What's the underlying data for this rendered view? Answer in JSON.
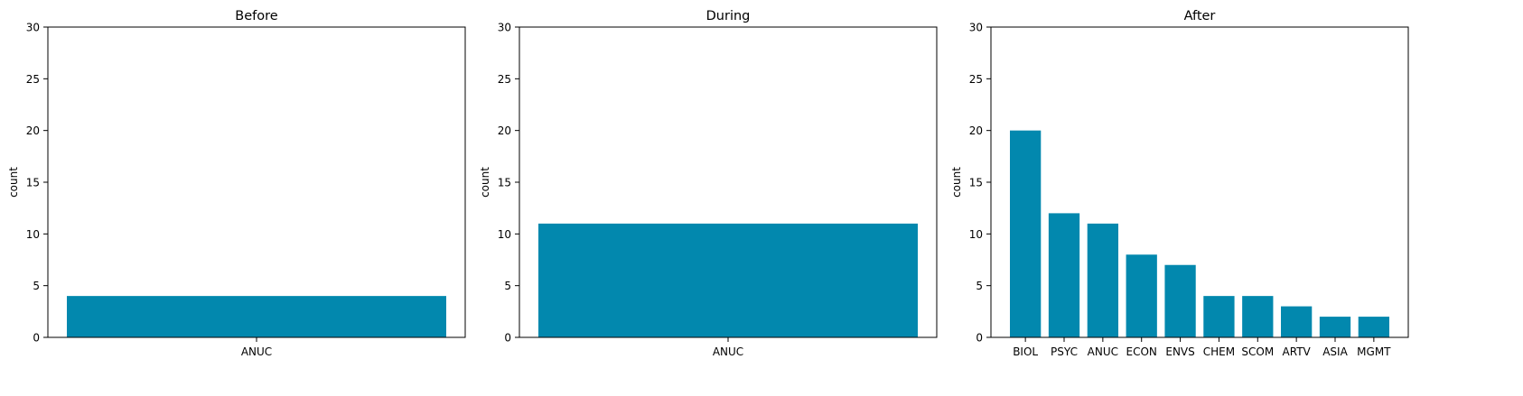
{
  "style": {
    "bar_color": "#0288ae",
    "axis_color": "#000000"
  },
  "chart_data": [
    {
      "type": "bar",
      "title": "Before",
      "ylabel": "count",
      "xlabel": "",
      "ylim": [
        0,
        30
      ],
      "yticks": [
        0,
        5,
        10,
        15,
        20,
        25,
        30
      ],
      "categories": [
        "ANUC"
      ],
      "values": [
        4
      ],
      "grid": false
    },
    {
      "type": "bar",
      "title": "During",
      "ylabel": "count",
      "xlabel": "",
      "ylim": [
        0,
        30
      ],
      "yticks": [
        0,
        5,
        10,
        15,
        20,
        25,
        30
      ],
      "categories": [
        "ANUC"
      ],
      "values": [
        11
      ],
      "grid": false
    },
    {
      "type": "bar",
      "title": "After",
      "ylabel": "count",
      "xlabel": "",
      "ylim": [
        0,
        30
      ],
      "yticks": [
        0,
        5,
        10,
        15,
        20,
        25,
        30
      ],
      "categories": [
        "BIOL",
        "PSYC",
        "ANUC",
        "ECON",
        "ENVS",
        "CHEM",
        "SCOM",
        "ARTV",
        "ASIA",
        "MGMT"
      ],
      "values": [
        20,
        12,
        11,
        8,
        7,
        4,
        4,
        3,
        2,
        2
      ],
      "grid": false
    }
  ]
}
